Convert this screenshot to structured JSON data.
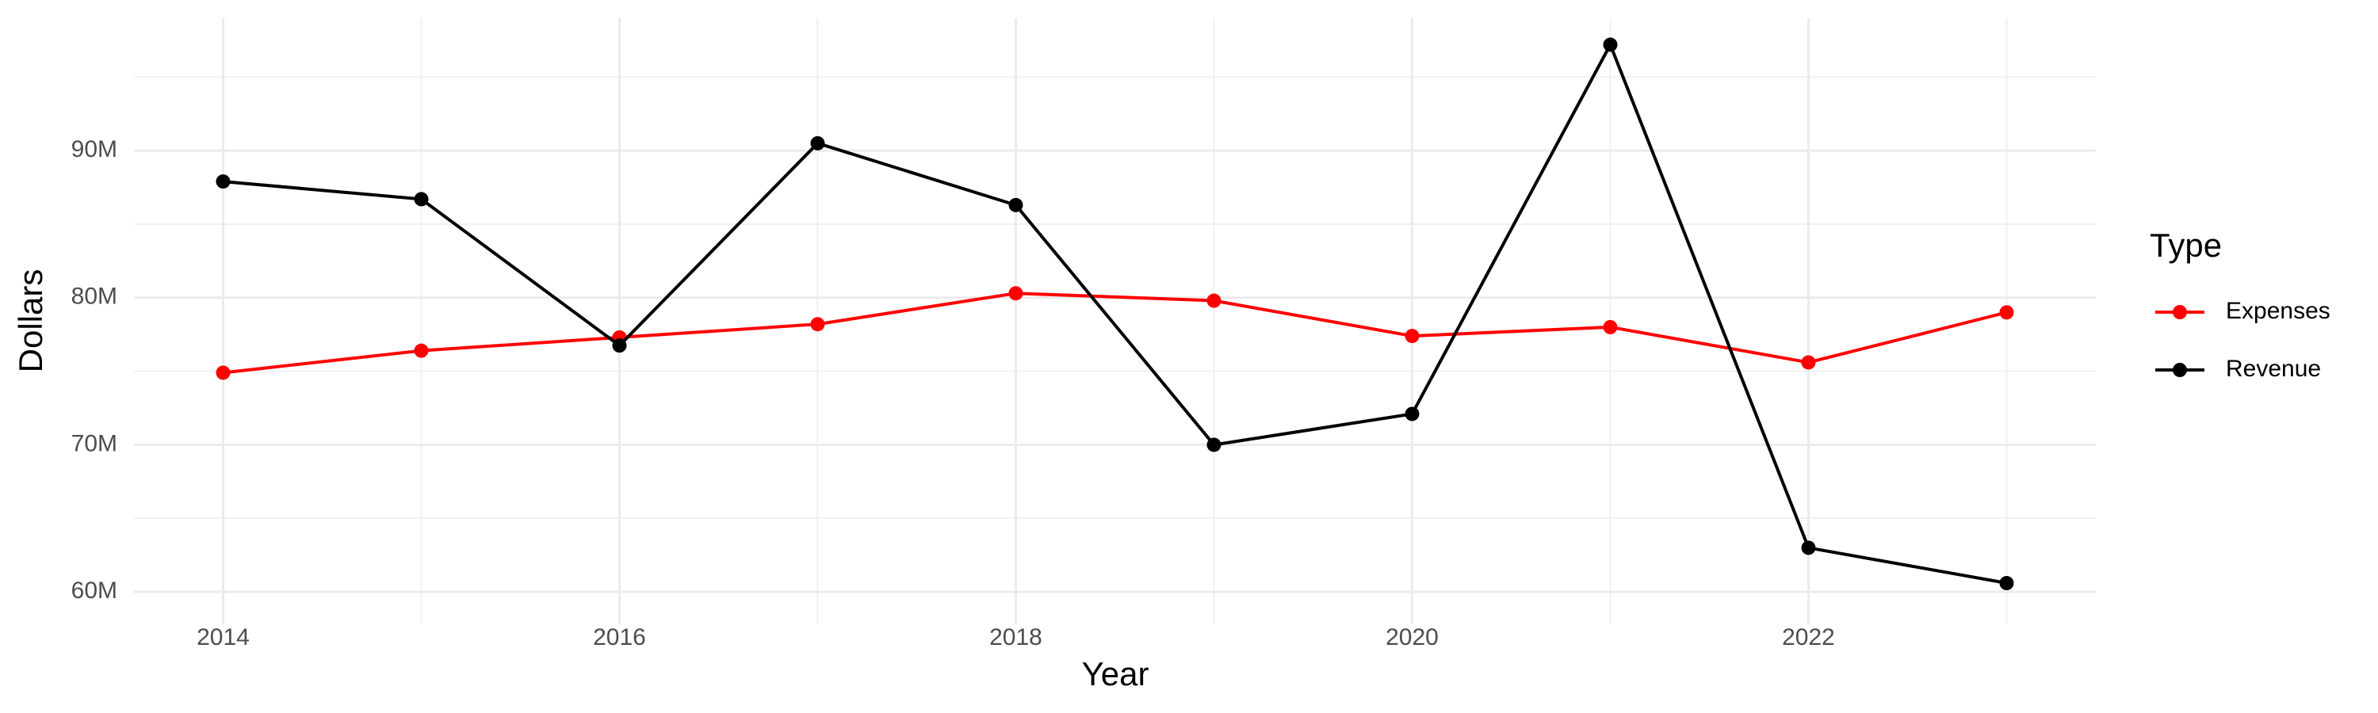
{
  "chart_data": {
    "type": "line",
    "x_label": "Year",
    "y_label": "Dollars",
    "x": [
      2014,
      2015,
      2016,
      2017,
      2018,
      2019,
      2020,
      2021,
      2022,
      2023
    ],
    "series": [
      {
        "name": "Expenses",
        "color": "#ff0000",
        "values": [
          74900000,
          76400000,
          77300000,
          78200000,
          80300000,
          79800000,
          77400000,
          78000000,
          75600000,
          79000000
        ]
      },
      {
        "name": "Revenue",
        "color": "#000000",
        "values": [
          87900000,
          86700000,
          76750000,
          90500000,
          86300000,
          70000000,
          72100000,
          97200000,
          63000000,
          60600000
        ]
      }
    ],
    "xlim": [
      2013.55,
      2023.45
    ],
    "xticks": [
      2014,
      2016,
      2018,
      2020,
      2022
    ],
    "ylim": [
      57800000,
      99000000
    ],
    "yticks": [
      {
        "value": 60000000,
        "label": "60M"
      },
      {
        "value": 70000000,
        "label": "70M"
      },
      {
        "value": 80000000,
        "label": "80M"
      },
      {
        "value": 90000000,
        "label": "90M"
      }
    ],
    "legend_title": "Type",
    "legend_position": "right",
    "grid": true
  }
}
